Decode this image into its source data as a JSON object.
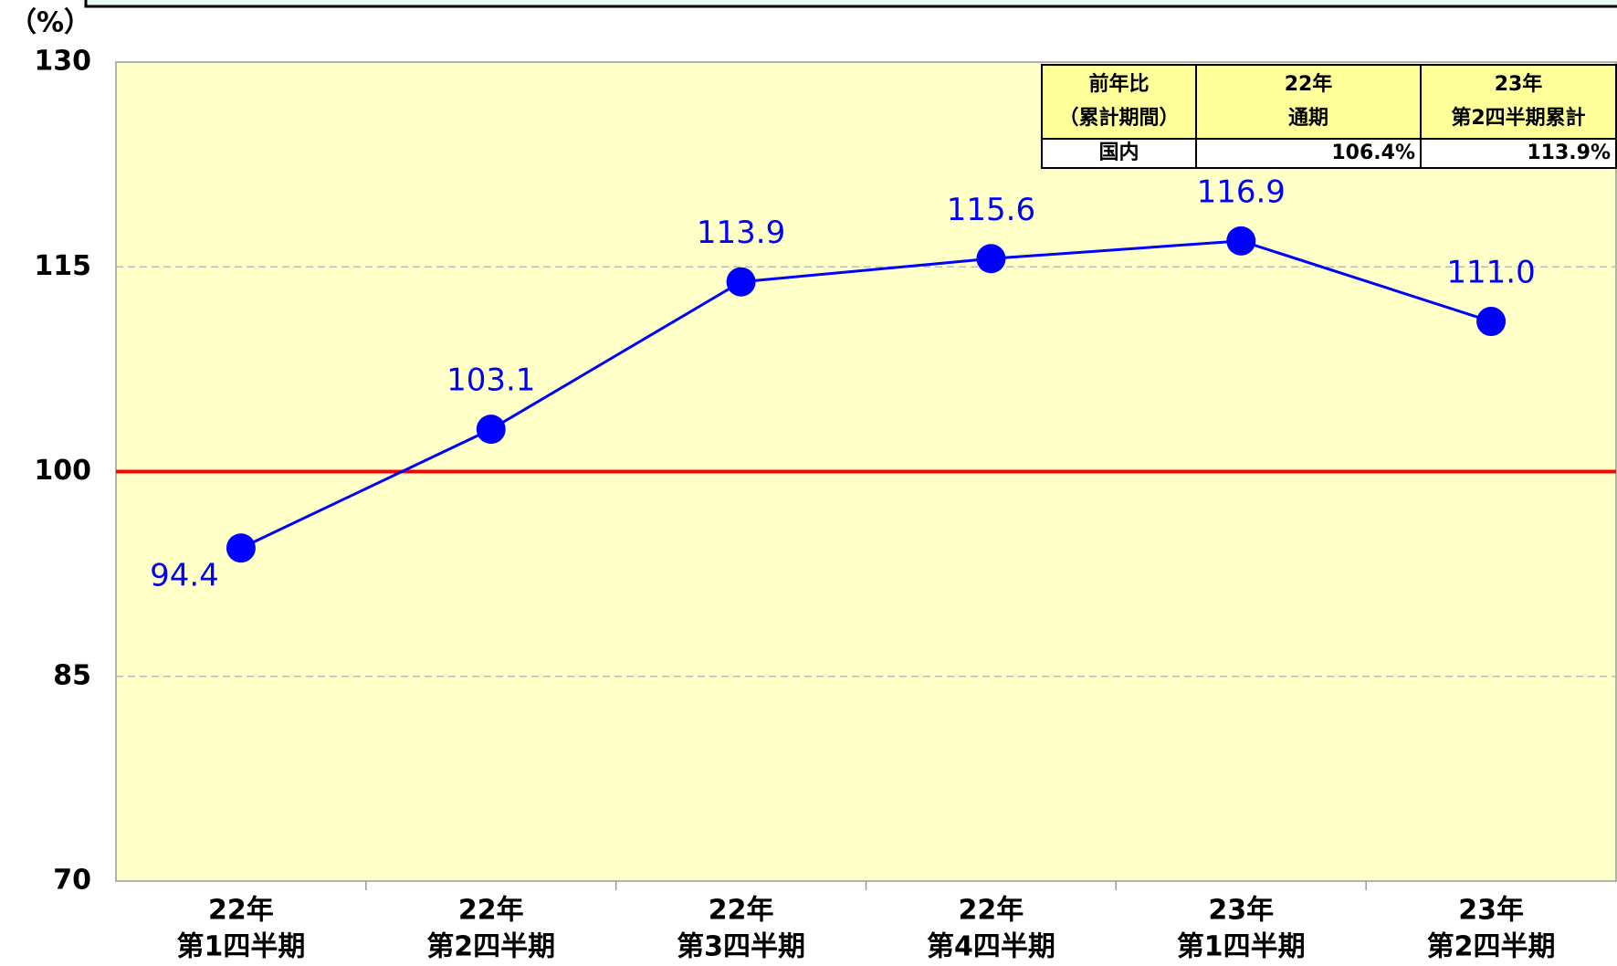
{
  "chart_data": {
    "type": "line",
    "y_unit": "（%）",
    "categories": [
      [
        "22年",
        "第1四半期"
      ],
      [
        "22年",
        "第2四半期"
      ],
      [
        "22年",
        "第3四半期"
      ],
      [
        "22年",
        "第4四半期"
      ],
      [
        "23年",
        "第1四半期"
      ],
      [
        "23年",
        "第2四半期"
      ]
    ],
    "series": [
      {
        "color": "#0000ff",
        "values": [
          94.4,
          103.1,
          113.9,
          115.6,
          116.9,
          111.0
        ],
        "value_labels": [
          "94.4",
          "103.1",
          "113.9",
          "115.6",
          "116.9",
          "111.0"
        ]
      }
    ],
    "ylim": [
      70,
      130
    ],
    "yticks": [
      70,
      85,
      100,
      115,
      130
    ],
    "grid": true,
    "reference_line": {
      "value": 100,
      "color": "#ff0000"
    },
    "background": "#ffffc8"
  },
  "table": {
    "header": [
      [
        "前年比",
        "（累計期間）"
      ],
      [
        "22年",
        "通期"
      ],
      [
        "23年",
        "第2四半期累計"
      ]
    ],
    "rows": [
      [
        "国内",
        "106.4%",
        "113.9%"
      ]
    ]
  }
}
